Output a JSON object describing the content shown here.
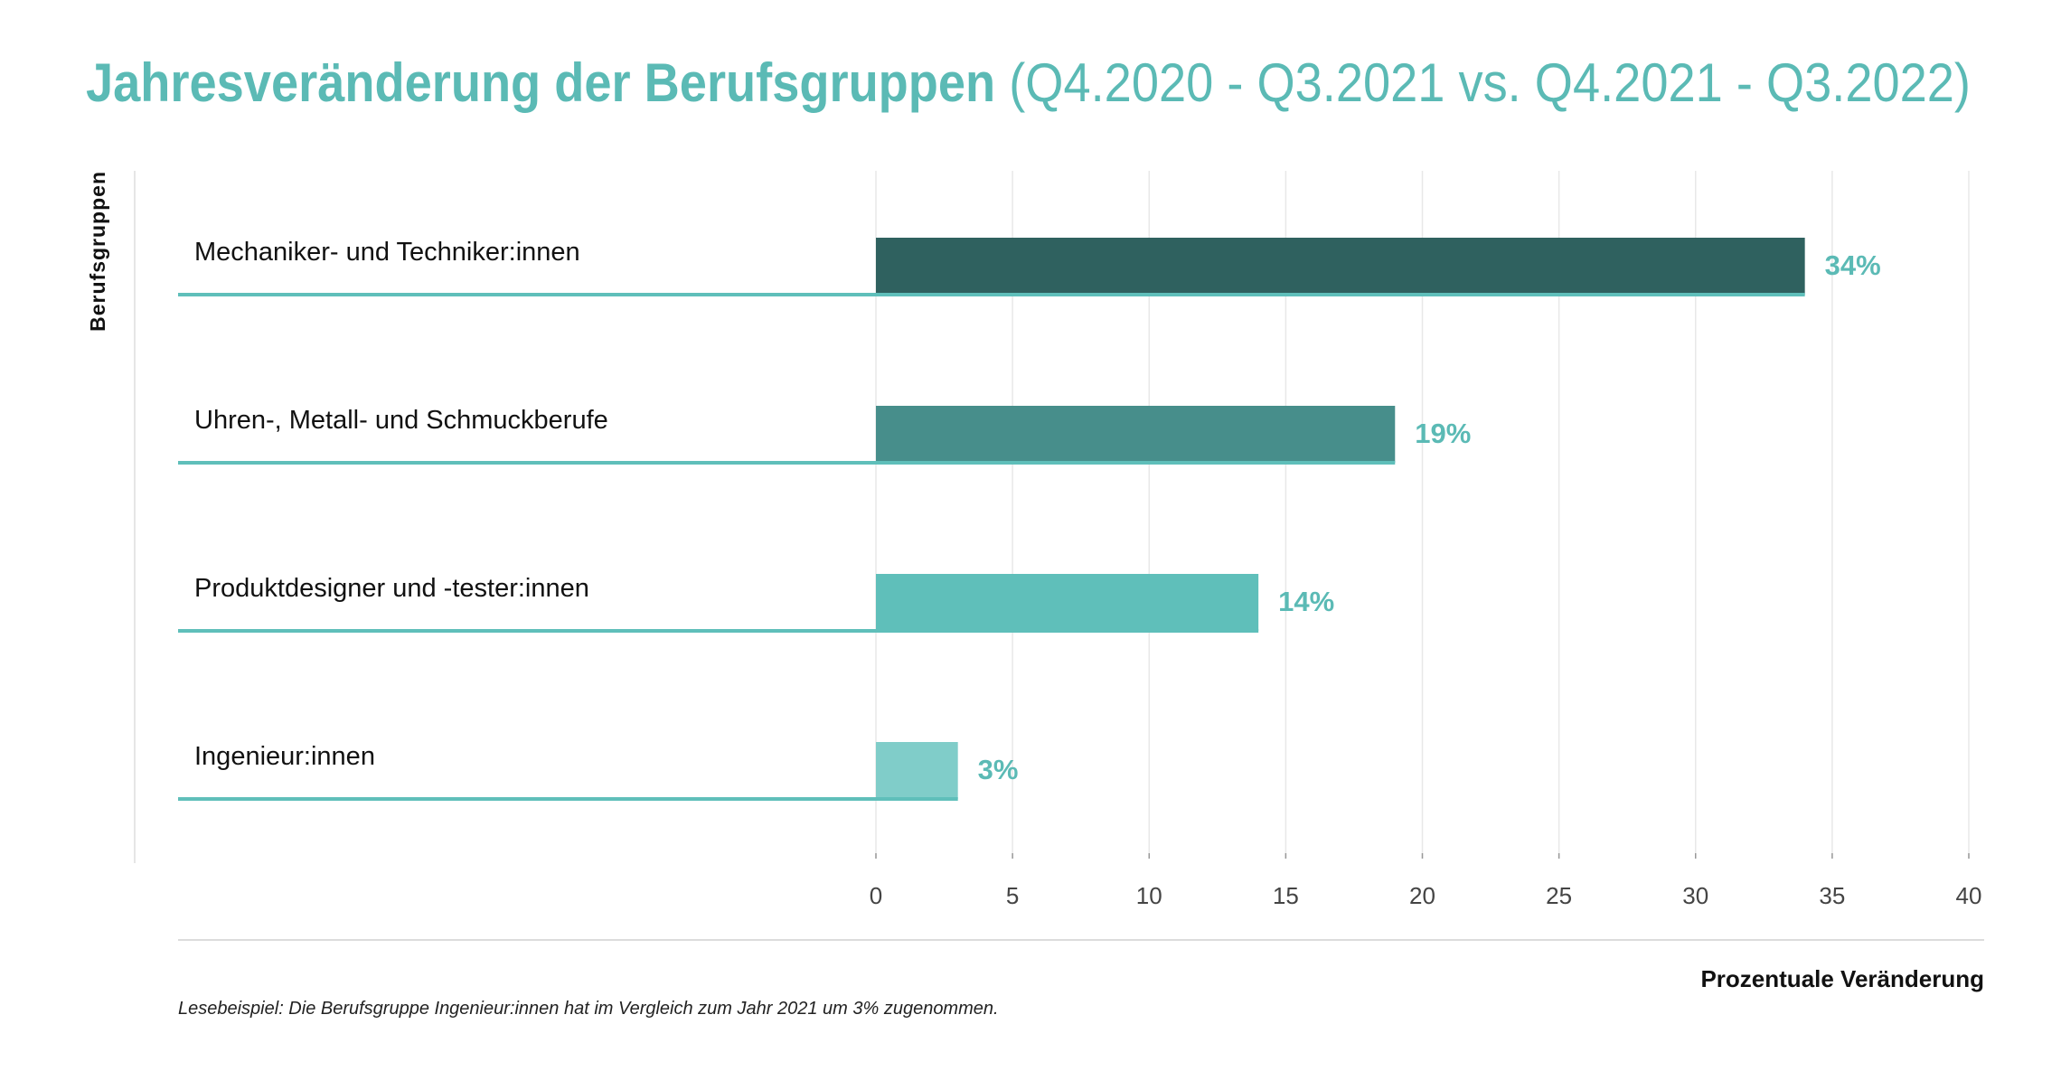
{
  "title": {
    "main": "Jahresveränderung der Berufsgruppen",
    "sub": "(Q4.2020 - Q3.2021 vs. Q4.2021 - Q3.2022)"
  },
  "colors": {
    "accent": "#5bbab5",
    "bars": [
      "#2f615f",
      "#478e8b",
      "#5fbfba",
      "#80cdc9"
    ],
    "baseline": "#5fbfba",
    "grid": "#e8e8e8",
    "text": "#111111"
  },
  "chart_data": {
    "type": "bar",
    "orientation": "horizontal",
    "categories": [
      "Mechaniker- und Techniker:innen",
      "Uhren-, Metall- und Schmuckberufe",
      "Produktdesigner und -tester:innen",
      "Ingenieur:innen"
    ],
    "values": [
      34,
      19,
      14,
      3
    ],
    "data_labels": [
      "34%",
      "19%",
      "14%",
      "3%"
    ],
    "xlabel": "Prozentuale Veränderung",
    "ylabel": "Berufsgruppen",
    "xlim": [
      0,
      40
    ],
    "xticks": [
      0,
      5,
      10,
      15,
      20,
      25,
      30,
      35,
      40
    ],
    "xtick_labels": [
      "0",
      "5",
      "10",
      "15",
      "20",
      "25",
      "30",
      "35",
      "40"
    ],
    "grid": "vertical",
    "legend": "none"
  },
  "footnote": "Lesebeispiel: Die Berufsgruppe Ingenieur:innen hat im Vergleich zum Jahr 2021 um 3% zugenommen."
}
